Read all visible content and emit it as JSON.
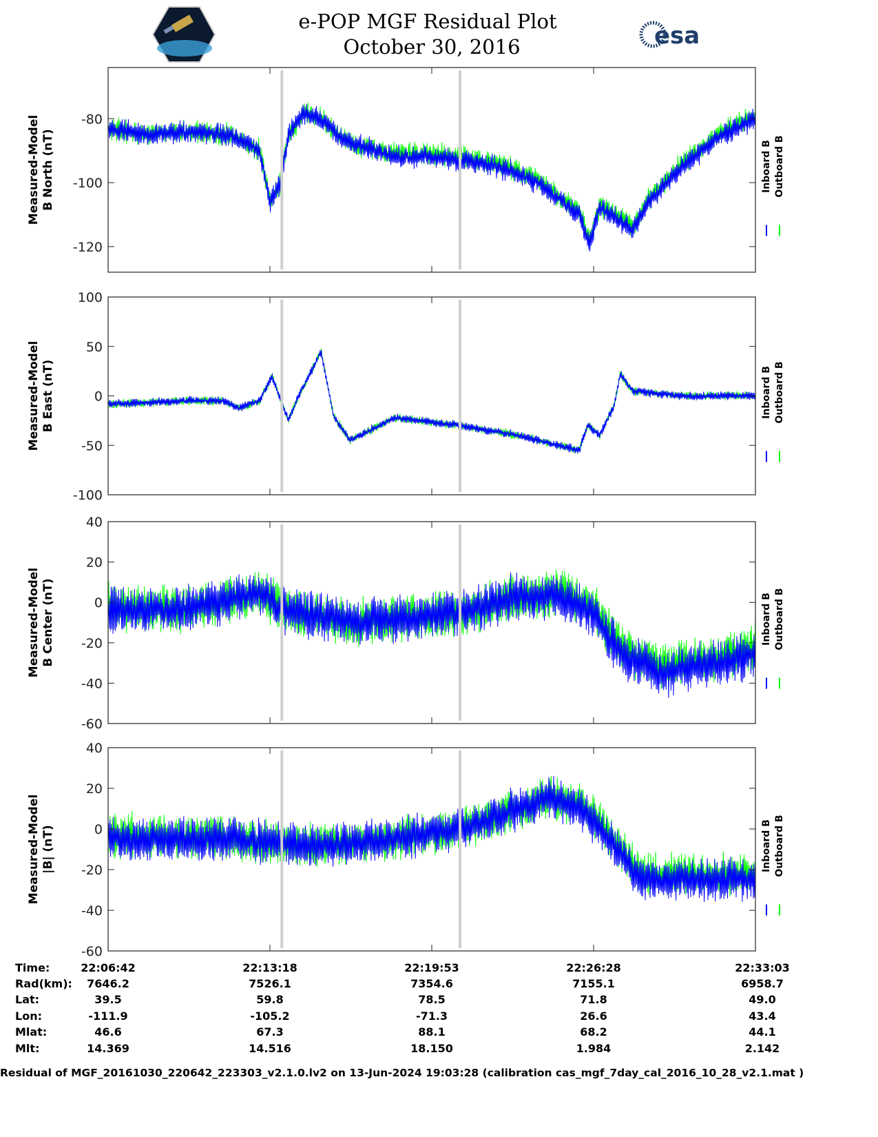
{
  "header": {
    "title_line1": "e-POP MGF Residual Plot",
    "title_line2": "October 30, 2016",
    "logo_left": "CASSIOPE",
    "logo_right": "esa"
  },
  "chart_data": [
    {
      "type": "line",
      "ylabel": [
        "Measured-Model",
        "B North (nT)"
      ],
      "ylim": [
        -128,
        -64
      ],
      "yticks": [
        -80,
        -100,
        -120
      ],
      "legend": [
        "Inboard B",
        "Outboard B"
      ],
      "legend_placement": "right",
      "series": [
        {
          "name": "Inboard B",
          "color": "#0000ff",
          "noise": 4,
          "trend": [
            [
              0,
              -83
            ],
            [
              100,
              -85
            ],
            [
              200,
              -84
            ],
            [
              300,
              -85
            ],
            [
              370,
              -90
            ],
            [
              395,
              -106
            ],
            [
              420,
              -100
            ],
            [
              440,
              -85
            ],
            [
              480,
              -78
            ],
            [
              520,
              -80
            ],
            [
              560,
              -85
            ],
            [
              600,
              -88
            ],
            [
              700,
              -92
            ],
            [
              800,
              -92
            ],
            [
              860,
              -93
            ],
            [
              950,
              -95
            ],
            [
              1050,
              -100
            ],
            [
              1100,
              -105
            ],
            [
              1150,
              -110
            ],
            [
              1175,
              -119
            ],
            [
              1200,
              -108
            ],
            [
              1250,
              -112
            ],
            [
              1280,
              -115
            ],
            [
              1320,
              -106
            ],
            [
              1400,
              -95
            ],
            [
              1500,
              -85
            ],
            [
              1580,
              -80
            ]
          ]
        },
        {
          "name": "Outboard B",
          "color": "#00ff00",
          "noise": 4,
          "trend": [
            [
              0,
              -83
            ],
            [
              100,
              -85
            ],
            [
              200,
              -84
            ],
            [
              300,
              -85
            ],
            [
              370,
              -90
            ],
            [
              395,
              -106
            ],
            [
              420,
              -100
            ],
            [
              440,
              -85
            ],
            [
              480,
              -78
            ],
            [
              520,
              -80
            ],
            [
              560,
              -85
            ],
            [
              600,
              -88
            ],
            [
              700,
              -91
            ],
            [
              800,
              -91
            ],
            [
              860,
              -92
            ],
            [
              950,
              -94
            ],
            [
              1050,
              -99
            ],
            [
              1100,
              -104
            ],
            [
              1150,
              -109
            ],
            [
              1175,
              -118
            ],
            [
              1200,
              -107
            ],
            [
              1250,
              -111
            ],
            [
              1280,
              -114
            ],
            [
              1320,
              -105
            ],
            [
              1400,
              -94
            ],
            [
              1500,
              -84
            ],
            [
              1580,
              -79
            ]
          ]
        }
      ]
    },
    {
      "type": "line",
      "ylabel": [
        "Measured-Model",
        "B East (nT)"
      ],
      "ylim": [
        -100,
        100
      ],
      "yticks": [
        100,
        50,
        0,
        -50,
        -100
      ],
      "legend": [
        "Inboard B",
        "Outboard B"
      ],
      "legend_placement": "right",
      "series": [
        {
          "name": "Inboard B",
          "color": "#0000ff",
          "noise": 5,
          "trend": [
            [
              0,
              -8
            ],
            [
              200,
              -5
            ],
            [
              280,
              -5
            ],
            [
              320,
              -12
            ],
            [
              370,
              -5
            ],
            [
              400,
              20
            ],
            [
              440,
              -25
            ],
            [
              465,
              0
            ],
            [
              520,
              45
            ],
            [
              550,
              -20
            ],
            [
              590,
              -45
            ],
            [
              700,
              -22
            ],
            [
              860,
              -30
            ],
            [
              1000,
              -40
            ],
            [
              1100,
              -50
            ],
            [
              1150,
              -55
            ],
            [
              1170,
              -30
            ],
            [
              1200,
              -40
            ],
            [
              1235,
              -10
            ],
            [
              1250,
              22
            ],
            [
              1280,
              5
            ],
            [
              1400,
              0
            ],
            [
              1580,
              0
            ]
          ]
        },
        {
          "name": "Outboard B",
          "color": "#00ff00",
          "noise": 5,
          "trend": [
            [
              0,
              -8
            ],
            [
              200,
              -5
            ],
            [
              280,
              -5
            ],
            [
              320,
              -12
            ],
            [
              370,
              -5
            ],
            [
              400,
              20
            ],
            [
              440,
              -25
            ],
            [
              465,
              0
            ],
            [
              520,
              45
            ],
            [
              550,
              -20
            ],
            [
              590,
              -45
            ],
            [
              700,
              -22
            ],
            [
              860,
              -30
            ],
            [
              1000,
              -40
            ],
            [
              1100,
              -50
            ],
            [
              1150,
              -55
            ],
            [
              1170,
              -30
            ],
            [
              1200,
              -40
            ],
            [
              1235,
              -10
            ],
            [
              1250,
              22
            ],
            [
              1280,
              5
            ],
            [
              1400,
              0
            ],
            [
              1580,
              0
            ]
          ]
        }
      ]
    },
    {
      "type": "line",
      "ylabel": [
        "Measured-Model",
        "B Center (nT)"
      ],
      "ylim": [
        -60,
        40
      ],
      "yticks": [
        40,
        20,
        0,
        -20,
        -40,
        -60
      ],
      "legend": [
        "Inboard B",
        "Outboard B"
      ],
      "legend_placement": "right",
      "series": [
        {
          "name": "Inboard B",
          "color": "#0000ff",
          "noise": 11,
          "trend": [
            [
              0,
              -5
            ],
            [
              200,
              -3
            ],
            [
              380,
              5
            ],
            [
              420,
              -3
            ],
            [
              600,
              -10
            ],
            [
              860,
              -5
            ],
            [
              1000,
              3
            ],
            [
              1100,
              3
            ],
            [
              1180,
              -5
            ],
            [
              1250,
              -25
            ],
            [
              1350,
              -35
            ],
            [
              1500,
              -30
            ],
            [
              1580,
              -25
            ]
          ]
        },
        {
          "name": "Outboard B",
          "color": "#00ff00",
          "noise": 11,
          "trend": [
            [
              0,
              -3
            ],
            [
              200,
              -3
            ],
            [
              380,
              5
            ],
            [
              420,
              -3
            ],
            [
              600,
              -10
            ],
            [
              860,
              -5
            ],
            [
              1000,
              3
            ],
            [
              1100,
              5
            ],
            [
              1180,
              -2
            ],
            [
              1250,
              -22
            ],
            [
              1350,
              -32
            ],
            [
              1500,
              -27
            ],
            [
              1580,
              -22
            ]
          ]
        }
      ]
    },
    {
      "type": "line",
      "ylabel": [
        "Measured-Model",
        "|B| (nT)"
      ],
      "ylim": [
        -60,
        40
      ],
      "yticks": [
        40,
        20,
        0,
        -20,
        -40,
        -60
      ],
      "legend": [
        "Inboard B",
        "Outboard B"
      ],
      "legend_placement": "right",
      "series": [
        {
          "name": "Inboard B",
          "color": "#0000ff",
          "noise": 10,
          "trend": [
            [
              0,
              -5
            ],
            [
              300,
              -5
            ],
            [
              500,
              -8
            ],
            [
              700,
              -5
            ],
            [
              860,
              0
            ],
            [
              1000,
              10
            ],
            [
              1080,
              15
            ],
            [
              1150,
              10
            ],
            [
              1200,
              0
            ],
            [
              1300,
              -25
            ],
            [
              1500,
              -25
            ],
            [
              1580,
              -25
            ]
          ]
        },
        {
          "name": "Outboard B",
          "color": "#00ff00",
          "noise": 10,
          "trend": [
            [
              0,
              -3
            ],
            [
              300,
              -5
            ],
            [
              500,
              -8
            ],
            [
              700,
              -5
            ],
            [
              860,
              0
            ],
            [
              1000,
              10
            ],
            [
              1080,
              15
            ],
            [
              1150,
              13
            ],
            [
              1200,
              3
            ],
            [
              1300,
              -22
            ],
            [
              1500,
              -22
            ],
            [
              1580,
              -22
            ]
          ]
        }
      ]
    }
  ],
  "x_axis": {
    "range_seconds": [
      0,
      1580
    ],
    "tick_seconds": [
      0,
      395,
      790,
      1185,
      1580
    ],
    "gap_markers_seconds": [
      424,
      859
    ]
  },
  "ephemeris": {
    "row_labels": [
      "Time:",
      "Rad(km):",
      "Lat:",
      "Lon:",
      "Mlat:",
      "Mlt:"
    ],
    "columns": [
      [
        "22:06:42",
        "7646.2",
        "39.5",
        "-111.9",
        "46.6",
        "14.369"
      ],
      [
        "22:13:18",
        "7526.1",
        "59.8",
        "-105.2",
        "67.3",
        "14.516"
      ],
      [
        "22:19:53",
        "7354.6",
        "78.5",
        "-71.3",
        "88.1",
        "18.150"
      ],
      [
        "22:26:28",
        "7155.1",
        "71.8",
        "26.6",
        "68.2",
        "1.984"
      ],
      [
        "22:33:03",
        "6958.7",
        "49.0",
        "43.4",
        "44.1",
        "2.142"
      ]
    ]
  },
  "footer": "Residual of MGF_20161030_220642_223303_v2.1.0.lv2 on 13-Jun-2024 19:03:28 (calibration cas_mgf_7day_cal_2016_10_28_v2.1.mat )"
}
